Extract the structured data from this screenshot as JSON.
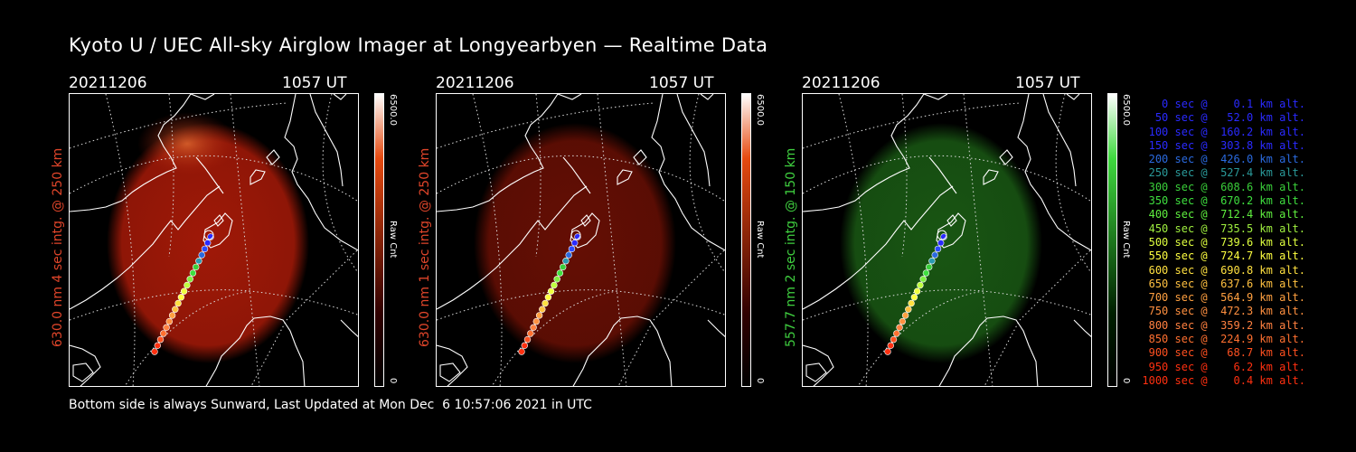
{
  "title": "Kyoto U / UEC All-sky Airglow Imager at Longyearbyen — Realtime Data",
  "footer": "Bottom side is always Sunward, Last Updated at Mon Dec  6 10:57:06 2021 in UTC",
  "panels": [
    {
      "date": "20211206",
      "time": "1057 UT",
      "label": "630.0 nm 4 sec intg. @ 250 km",
      "label_color": "#e0452a",
      "glow_color": "#a81a08",
      "bright_spot": true,
      "cbar_top": "6500.0",
      "cbar_mid": "Raw Cnt",
      "cbar_bot": "0",
      "cbar_colors": [
        "#ffffff",
        "#e64a10",
        "#300000",
        "#000000"
      ]
    },
    {
      "date": "20211206",
      "time": "1057 UT",
      "label": "630.0 nm 1 sec intg. @ 250 km",
      "label_color": "#e0452a",
      "glow_color": "#6a0f04",
      "bright_spot": false,
      "cbar_top": "6500.0",
      "cbar_mid": "Raw Cnt",
      "cbar_bot": "0",
      "cbar_colors": [
        "#ffffff",
        "#e64a10",
        "#300000",
        "#000000"
      ]
    },
    {
      "date": "20211206",
      "time": "1057 UT",
      "label": "557.7 nm 2 sec intg. @ 150 km",
      "label_color": "#3fcf3f",
      "glow_color": "#1a5a14",
      "bright_spot": false,
      "cbar_top": "6500.0",
      "cbar_mid": "Raw Cnt",
      "cbar_bot": "0",
      "cbar_colors": [
        "#ffffff",
        "#3fd93f",
        "#002000",
        "#000000"
      ]
    }
  ],
  "legend": [
    {
      "text": "0 sec @    0.1 km alt.",
      "color": "#2a2aff"
    },
    {
      "text": "50 sec @   52.0 km alt.",
      "color": "#2a2aff"
    },
    {
      "text": "100 sec @  160.2 km alt.",
      "color": "#2a2aff"
    },
    {
      "text": "150 sec @  303.8 km alt.",
      "color": "#2a2aff"
    },
    {
      "text": "200 sec @  426.0 km alt.",
      "color": "#2a6adf"
    },
    {
      "text": "250 sec @  527.4 km alt.",
      "color": "#2a9a9a"
    },
    {
      "text": "300 sec @  608.6 km alt.",
      "color": "#3acf3a"
    },
    {
      "text": "350 sec @  670.2 km alt.",
      "color": "#3fdf3f"
    },
    {
      "text": "400 sec @  712.4 km alt.",
      "color": "#5fef3f"
    },
    {
      "text": "450 sec @  735.5 km alt.",
      "color": "#9fef3f"
    },
    {
      "text": "500 sec @  739.6 km alt.",
      "color": "#dfff3f"
    },
    {
      "text": "550 sec @  724.7 km alt.",
      "color": "#ffff40"
    },
    {
      "text": "600 sec @  690.8 km alt.",
      "color": "#ffe040"
    },
    {
      "text": "650 sec @  637.6 km alt.",
      "color": "#ffc040"
    },
    {
      "text": "700 sec @  564.9 km alt.",
      "color": "#ffa040"
    },
    {
      "text": "750 sec @  472.3 km alt.",
      "color": "#ff9040"
    },
    {
      "text": "800 sec @  359.2 km alt.",
      "color": "#ff8040"
    },
    {
      "text": "850 sec @  224.9 km alt.",
      "color": "#ff7030"
    },
    {
      "text": "900 sec @   68.7 km alt.",
      "color": "#ff5020"
    },
    {
      "text": "950 sec @    6.2 km alt.",
      "color": "#ff3010"
    },
    {
      "text": "1000 sec @    0.4 km alt.",
      "color": "#ff3010"
    }
  ]
}
